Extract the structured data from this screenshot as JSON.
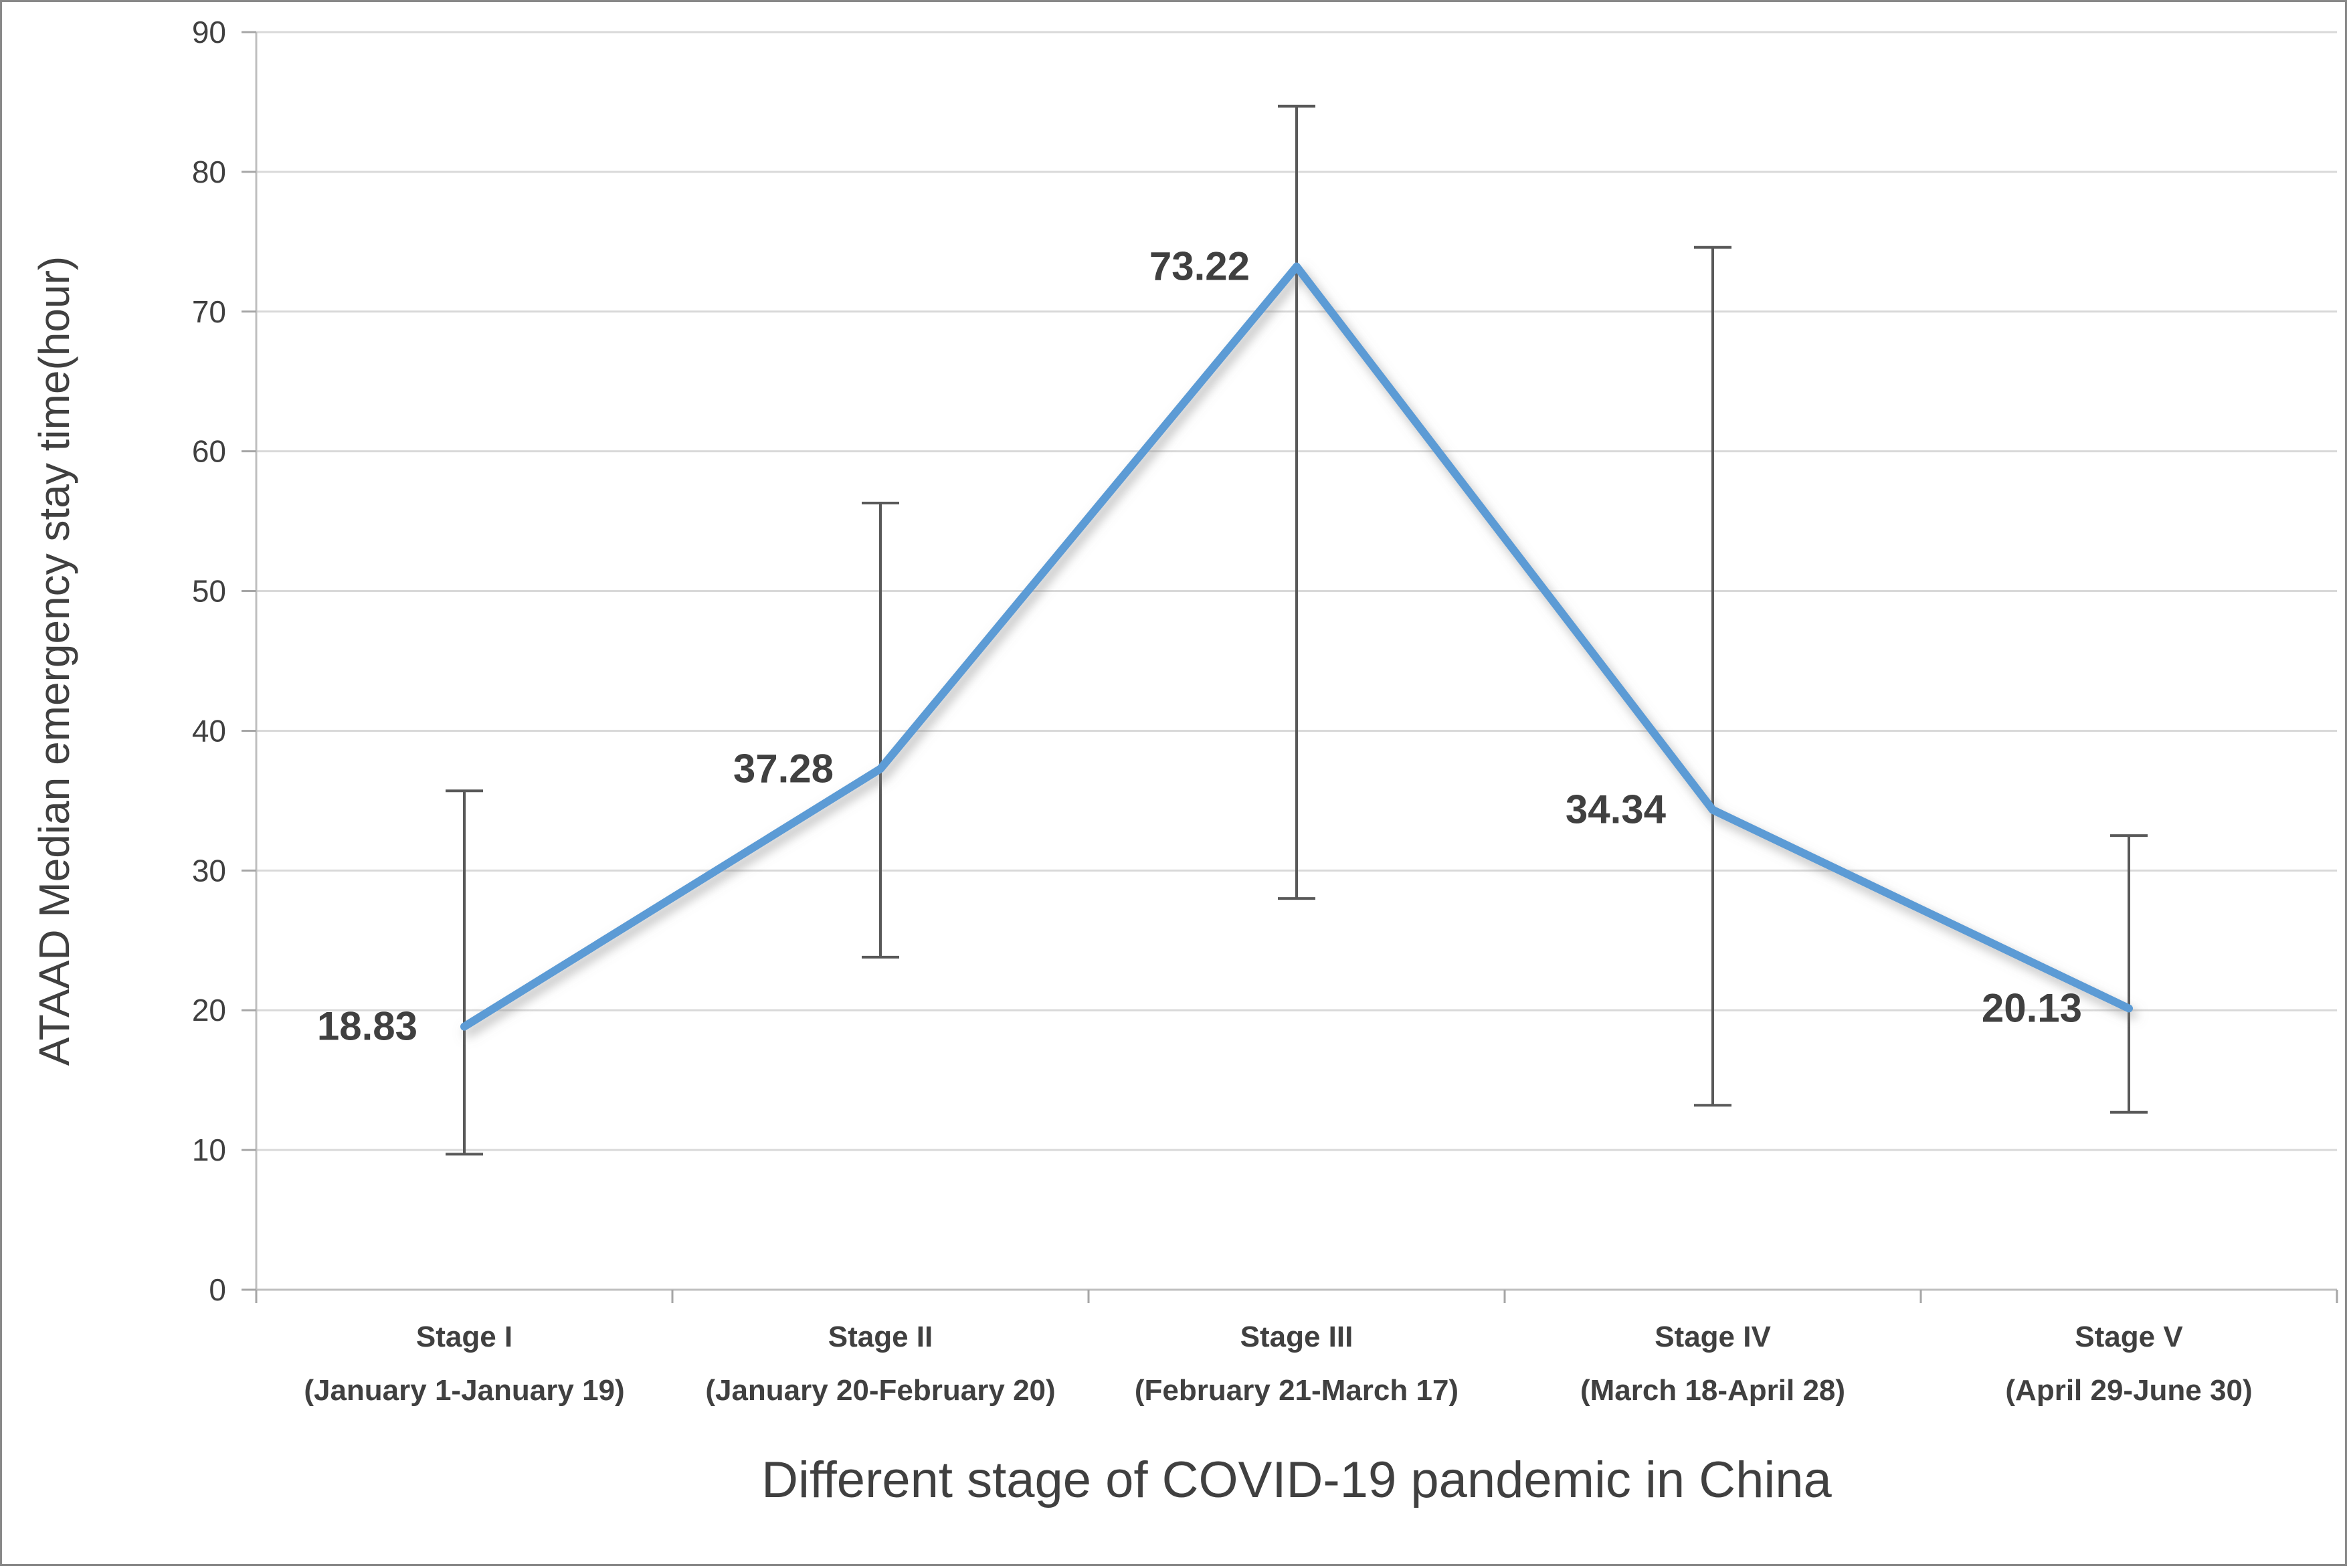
{
  "chart_data": {
    "type": "line",
    "title": "",
    "xlabel": "Different stage of COVID-19 pandemic in China",
    "ylabel": "ATAAD Median emergency stay time(hour)",
    "ylim": [
      0,
      90
    ],
    "ytick_step": 10,
    "grid": true,
    "legend": "none",
    "line_color": "#5B9BD5",
    "grid_color": "#D9D9D9",
    "axis_color": "#BFBFBF",
    "tick_color": "#A6A6A6",
    "errorbar_color": "#595959",
    "text_color": "#404040",
    "categories": [
      "Stage I",
      "Stage II",
      "Stage III",
      "Stage IV",
      "Stage V"
    ],
    "category_dates": [
      "(January 1-January 19)",
      "(January 20-February 20)",
      "(February 21-March 17)",
      "(March 18-April 28)",
      "(April 29-June 30)"
    ],
    "series": [
      {
        "name": "ATAAD Median emergency stay time",
        "values": [
          18.83,
          37.28,
          73.22,
          34.34,
          20.13
        ],
        "data_labels": [
          "18.83",
          "37.28",
          "73.22",
          "34.34",
          "20.13"
        ],
        "error_upper": [
          35.7,
          56.3,
          84.7,
          74.6,
          32.5
        ],
        "error_lower": [
          9.7,
          23.8,
          28.0,
          13.2,
          12.7
        ]
      }
    ],
    "yticks": [
      0,
      10,
      20,
      30,
      40,
      50,
      60,
      70,
      80,
      90
    ]
  }
}
